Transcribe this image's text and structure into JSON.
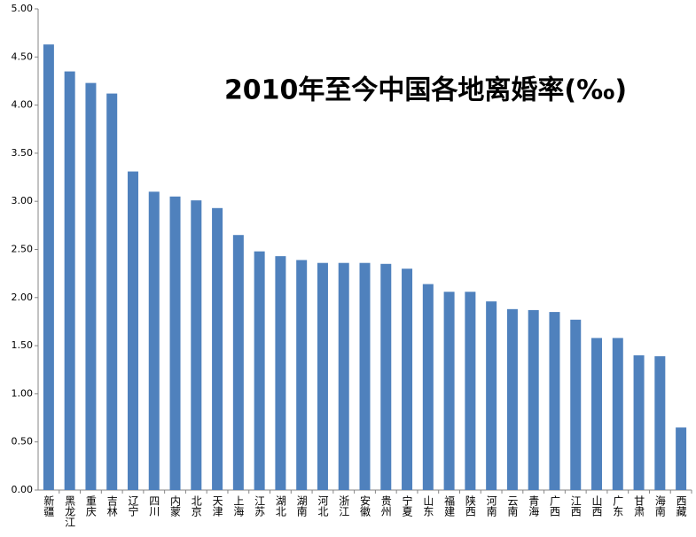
{
  "chart_data": {
    "type": "bar",
    "title": "2010年至今中国各地离婚率(‰)",
    "categories": [
      "新疆",
      "黑龙江",
      "重庆",
      "吉林",
      "辽宁",
      "四川",
      "内蒙",
      "北京",
      "天津",
      "上海",
      "江苏",
      "湖北",
      "湖南",
      "河北",
      "浙江",
      "安徽",
      "贵州",
      "宁夏",
      "山东",
      "福建",
      "陕西",
      "河南",
      "云南",
      "青海",
      "广西",
      "江西",
      "山西",
      "广东",
      "甘肃",
      "海南",
      "西藏"
    ],
    "values": [
      4.63,
      4.35,
      4.23,
      4.12,
      3.31,
      3.1,
      3.05,
      3.01,
      2.93,
      2.65,
      2.48,
      2.43,
      2.39,
      2.36,
      2.36,
      2.36,
      2.35,
      2.3,
      2.14,
      2.06,
      2.06,
      1.96,
      1.88,
      1.87,
      1.85,
      1.77,
      1.58,
      1.58,
      1.4,
      1.39,
      0.65
    ],
    "color": "#4f81bd",
    "ylim": [
      0,
      5
    ],
    "yticks": [
      {
        "value": 0,
        "label": "0.00"
      },
      {
        "value": 0.5,
        "label": "0.50"
      },
      {
        "value": 1,
        "label": "1.00"
      },
      {
        "value": 1.5,
        "label": "1.50"
      },
      {
        "value": 2,
        "label": "2.00"
      },
      {
        "value": 2.5,
        "label": "2.50"
      },
      {
        "value": 3,
        "label": "3.00"
      },
      {
        "value": 3.5,
        "label": "3.50"
      },
      {
        "value": 4,
        "label": "4.00"
      },
      {
        "value": 4.5,
        "label": "4.50"
      },
      {
        "value": 5,
        "label": "5.00"
      }
    ],
    "grid": false
  }
}
